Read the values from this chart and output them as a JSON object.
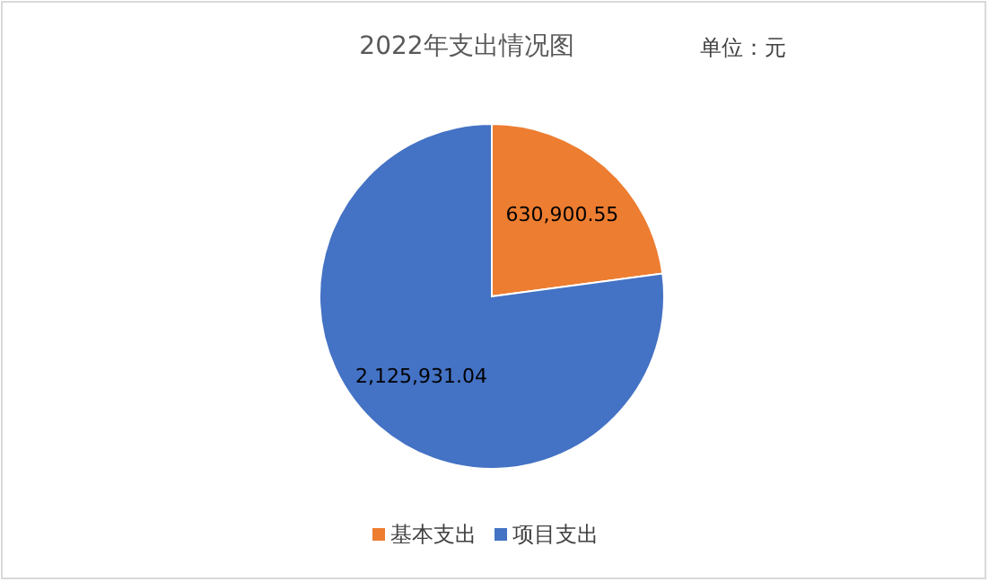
{
  "chart_data": {
    "type": "pie",
    "title": "2022年支出情况图",
    "annotations": [
      "单位：元"
    ],
    "categories": [
      "基本支出",
      "项目支出"
    ],
    "values": [
      630900.55,
      2125931.04
    ],
    "colors": [
      "#ed7d31",
      "#4472c4"
    ],
    "value_labels": [
      "630,900.55",
      "2,125,931.04"
    ],
    "legend": "bottom"
  }
}
